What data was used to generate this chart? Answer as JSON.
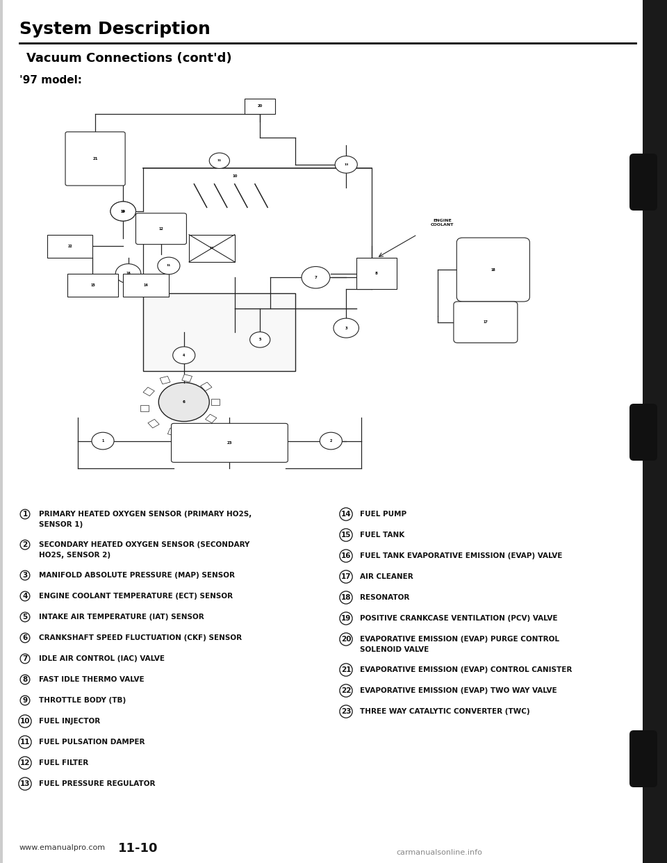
{
  "page_bg": "#ffffff",
  "title": "System Description",
  "subtitle": "Vacuum Connections (cont'd)",
  "model_label": "'97 model:",
  "title_fontsize": 18,
  "subtitle_fontsize": 13,
  "model_fontsize": 11,
  "left_col_items": [
    {
      "num": "1",
      "text": "PRIMARY HEATED OXYGEN SENSOR (PRIMARY HO2S,\nSENSOR 1)"
    },
    {
      "num": "2",
      "text": "SECONDARY HEATED OXYGEN SENSOR (SECONDARY\nHO2S, SENSOR 2)"
    },
    {
      "num": "3",
      "text": "MANIFOLD ABSOLUTE PRESSURE (MAP) SENSOR"
    },
    {
      "num": "4",
      "text": "ENGINE COOLANT TEMPERATURE (ECT) SENSOR"
    },
    {
      "num": "5",
      "text": "INTAKE AIR TEMPERATURE (IAT) SENSOR"
    },
    {
      "num": "6",
      "text": "CRANKSHAFT SPEED FLUCTUATION (CKF) SENSOR"
    },
    {
      "num": "7",
      "text": "IDLE AIR CONTROL (IAC) VALVE"
    },
    {
      "num": "8",
      "text": "FAST IDLE THERMO VALVE"
    },
    {
      "num": "9",
      "text": "THROTTLE BODY (TB)"
    },
    {
      "num": "10",
      "text": "FUEL INJECTOR"
    },
    {
      "num": "11",
      "text": "FUEL PULSATION DAMPER"
    },
    {
      "num": "12",
      "text": "FUEL FILTER"
    },
    {
      "num": "13",
      "text": "FUEL PRESSURE REGULATOR"
    }
  ],
  "right_col_items": [
    {
      "num": "14",
      "text": "FUEL PUMP"
    },
    {
      "num": "15",
      "text": "FUEL TANK"
    },
    {
      "num": "16",
      "text": "FUEL TANK EVAPORATIVE EMISSION (EVAP) VALVE"
    },
    {
      "num": "17",
      "text": "AIR CLEANER"
    },
    {
      "num": "18",
      "text": "RESONATOR"
    },
    {
      "num": "19",
      "text": "POSITIVE CRANKCASE VENTILATION (PCV) VALVE"
    },
    {
      "num": "20",
      "text": "EVAPORATIVE EMISSION (EVAP) PURGE CONTROL\nSOLENOID VALVE"
    },
    {
      "num": "21",
      "text": "EVAPORATIVE EMISSION (EVAP) CONTROL CANISTER"
    },
    {
      "num": "22",
      "text": "EVAPORATIVE EMISSION (EVAP) TWO WAY VALVE"
    },
    {
      "num": "23",
      "text": "THREE WAY CATALYTIC CONVERTER (TWC)"
    }
  ],
  "footer_left": "www.emanualpro.com",
  "footer_page": "11-10",
  "footer_right": "carmanualsonline.info",
  "item_fontsize": 7.5,
  "footer_fontsize": 8,
  "right_bar_color": "#1a1a1a",
  "separator_color": "#000000",
  "text_color": "#000000"
}
